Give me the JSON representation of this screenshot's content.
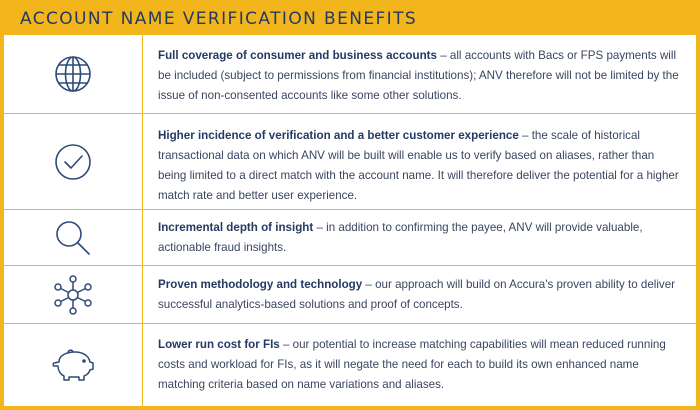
{
  "title": "ACCOUNT NAME VERIFICATION BENEFITS",
  "benefits": [
    {
      "icon": "globe-icon",
      "heading": "Full coverage of consumer and business accounts",
      "body": " – all accounts with Bacs or FPS payments will be included (subject to permissions from financial institutions); ANV therefore will not be limited by the issue of non-consented accounts like some other solutions."
    },
    {
      "icon": "checkmark-circle-icon",
      "heading": "Higher incidence of verification and a better customer experience",
      "body": " – the scale of historical transactional data on which ANV will be built will enable us to verify based on aliases, rather than being limited to a direct match with the account name. It will therefore deliver the potential for a higher match rate and better user experience."
    },
    {
      "icon": "magnifier-icon",
      "heading": "Incremental depth of insight",
      "body": " – in addition to confirming the payee, ANV will provide valuable, actionable fraud insights."
    },
    {
      "icon": "network-icon",
      "heading": "Proven methodology and technology",
      "body": " – our approach will build on Accura's proven ability to deliver successful analytics-based solutions and proof of concepts."
    },
    {
      "icon": "piggy-bank-icon",
      "heading": "Lower run cost for FIs",
      "body": " – our potential to increase matching capabilities will mean reduced running costs and workload for FIs, as it will negate the need for each to build its own enhanced name matching criteria based on name variations and aliases."
    }
  ],
  "colors": {
    "accent": "#f2b51c",
    "navy": "#243a63",
    "text": "#3a4560"
  }
}
